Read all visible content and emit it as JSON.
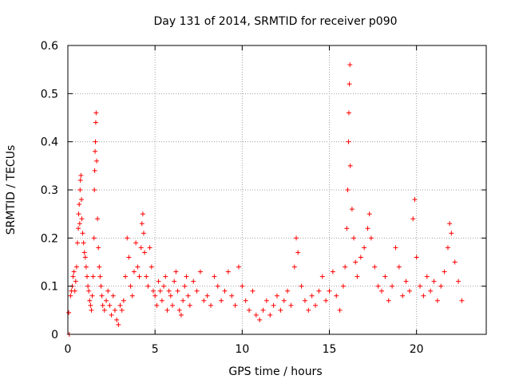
{
  "chart_data": {
    "type": "scatter",
    "title": "Day 131 of 2014, SRMTID for receiver p090",
    "xlabel": "GPS time / hours",
    "ylabel": "SRMTID / TECUs",
    "xlim": [
      0,
      24
    ],
    "ylim": [
      0,
      0.6
    ],
    "x_ticks": [
      0,
      5,
      10,
      15,
      20
    ],
    "x_tick_labels": [
      "0",
      "5",
      "10",
      "15",
      "20"
    ],
    "y_ticks": [
      0,
      0.1,
      0.2,
      0.3,
      0.4,
      0.5,
      0.6
    ],
    "y_tick_labels": [
      "0",
      "0.1",
      "0.2",
      "0.3",
      "0.4",
      "0.5",
      "0.6"
    ],
    "grid": true,
    "marker": "+",
    "marker_color": "#ff0000",
    "series": [
      {
        "name": "SRMTID",
        "points": [
          [
            0.05,
            0.045
          ],
          [
            0.08,
            0.0
          ],
          [
            0.15,
            0.08
          ],
          [
            0.2,
            0.09
          ],
          [
            0.25,
            0.1
          ],
          [
            0.3,
            0.12
          ],
          [
            0.35,
            0.13
          ],
          [
            0.4,
            0.09
          ],
          [
            0.45,
            0.11
          ],
          [
            0.5,
            0.14
          ],
          [
            0.55,
            0.19
          ],
          [
            0.6,
            0.22
          ],
          [
            0.62,
            0.25
          ],
          [
            0.65,
            0.27
          ],
          [
            0.68,
            0.23
          ],
          [
            0.7,
            0.3
          ],
          [
            0.72,
            0.32
          ],
          [
            0.75,
            0.33
          ],
          [
            0.78,
            0.28
          ],
          [
            0.8,
            0.24
          ],
          [
            0.85,
            0.21
          ],
          [
            0.9,
            0.19
          ],
          [
            0.95,
            0.17
          ],
          [
            1.0,
            0.16
          ],
          [
            1.05,
            0.14
          ],
          [
            1.1,
            0.12
          ],
          [
            1.15,
            0.1
          ],
          [
            1.2,
            0.09
          ],
          [
            1.25,
            0.07
          ],
          [
            1.3,
            0.06
          ],
          [
            1.35,
            0.05
          ],
          [
            1.4,
            0.08
          ],
          [
            1.45,
            0.12
          ],
          [
            1.5,
            0.2
          ],
          [
            1.52,
            0.3
          ],
          [
            1.54,
            0.34
          ],
          [
            1.56,
            0.38
          ],
          [
            1.58,
            0.4
          ],
          [
            1.6,
            0.44
          ],
          [
            1.62,
            0.46
          ],
          [
            1.65,
            0.36
          ],
          [
            1.7,
            0.24
          ],
          [
            1.75,
            0.18
          ],
          [
            1.8,
            0.14
          ],
          [
            1.85,
            0.12
          ],
          [
            1.9,
            0.1
          ],
          [
            1.95,
            0.08
          ],
          [
            2.0,
            0.06
          ],
          [
            2.1,
            0.05
          ],
          [
            2.2,
            0.07
          ],
          [
            2.3,
            0.09
          ],
          [
            2.4,
            0.06
          ],
          [
            2.5,
            0.04
          ],
          [
            2.6,
            0.08
          ],
          [
            2.7,
            0.05
          ],
          [
            2.8,
            0.03
          ],
          [
            2.9,
            0.02
          ],
          [
            3.0,
            0.06
          ],
          [
            3.1,
            0.05
          ],
          [
            3.2,
            0.07
          ],
          [
            3.3,
            0.12
          ],
          [
            3.4,
            0.2
          ],
          [
            3.5,
            0.16
          ],
          [
            3.6,
            0.1
          ],
          [
            3.7,
            0.08
          ],
          [
            3.8,
            0.13
          ],
          [
            3.9,
            0.19
          ],
          [
            4.0,
            0.14
          ],
          [
            4.1,
            0.12
          ],
          [
            4.2,
            0.18
          ],
          [
            4.25,
            0.23
          ],
          [
            4.3,
            0.25
          ],
          [
            4.35,
            0.21
          ],
          [
            4.4,
            0.17
          ],
          [
            4.5,
            0.12
          ],
          [
            4.6,
            0.1
          ],
          [
            4.7,
            0.18
          ],
          [
            4.8,
            0.14
          ],
          [
            4.9,
            0.09
          ],
          [
            5.0,
            0.08
          ],
          [
            5.1,
            0.06
          ],
          [
            5.2,
            0.11
          ],
          [
            5.3,
            0.09
          ],
          [
            5.4,
            0.07
          ],
          [
            5.5,
            0.1
          ],
          [
            5.6,
            0.12
          ],
          [
            5.7,
            0.05
          ],
          [
            5.8,
            0.09
          ],
          [
            5.9,
            0.08
          ],
          [
            6.0,
            0.06
          ],
          [
            6.1,
            0.11
          ],
          [
            6.2,
            0.13
          ],
          [
            6.3,
            0.09
          ],
          [
            6.4,
            0.05
          ],
          [
            6.5,
            0.04
          ],
          [
            6.6,
            0.07
          ],
          [
            6.7,
            0.1
          ],
          [
            6.8,
            0.12
          ],
          [
            6.9,
            0.08
          ],
          [
            7.0,
            0.06
          ],
          [
            7.2,
            0.11
          ],
          [
            7.4,
            0.09
          ],
          [
            7.6,
            0.13
          ],
          [
            7.8,
            0.07
          ],
          [
            8.0,
            0.08
          ],
          [
            8.2,
            0.06
          ],
          [
            8.4,
            0.12
          ],
          [
            8.6,
            0.1
          ],
          [
            8.8,
            0.07
          ],
          [
            9.0,
            0.09
          ],
          [
            9.2,
            0.13
          ],
          [
            9.4,
            0.08
          ],
          [
            9.6,
            0.06
          ],
          [
            9.8,
            0.14
          ],
          [
            10.0,
            0.1
          ],
          [
            10.2,
            0.07
          ],
          [
            10.4,
            0.05
          ],
          [
            10.6,
            0.09
          ],
          [
            10.8,
            0.04
          ],
          [
            11.0,
            0.03
          ],
          [
            11.2,
            0.05
          ],
          [
            11.4,
            0.07
          ],
          [
            11.6,
            0.04
          ],
          [
            11.8,
            0.06
          ],
          [
            12.0,
            0.08
          ],
          [
            12.2,
            0.05
          ],
          [
            12.4,
            0.07
          ],
          [
            12.6,
            0.09
          ],
          [
            12.8,
            0.06
          ],
          [
            13.0,
            0.14
          ],
          [
            13.1,
            0.2
          ],
          [
            13.2,
            0.17
          ],
          [
            13.4,
            0.1
          ],
          [
            13.6,
            0.07
          ],
          [
            13.8,
            0.05
          ],
          [
            14.0,
            0.08
          ],
          [
            14.2,
            0.06
          ],
          [
            14.4,
            0.09
          ],
          [
            14.6,
            0.12
          ],
          [
            14.8,
            0.07
          ],
          [
            15.0,
            0.09
          ],
          [
            15.2,
            0.13
          ],
          [
            15.4,
            0.08
          ],
          [
            15.6,
            0.05
          ],
          [
            15.8,
            0.1
          ],
          [
            15.9,
            0.14
          ],
          [
            16.0,
            0.22
          ],
          [
            16.05,
            0.3
          ],
          [
            16.1,
            0.4
          ],
          [
            16.12,
            0.46
          ],
          [
            16.15,
            0.52
          ],
          [
            16.18,
            0.56
          ],
          [
            16.2,
            0.35
          ],
          [
            16.3,
            0.26
          ],
          [
            16.4,
            0.2
          ],
          [
            16.5,
            0.15
          ],
          [
            16.6,
            0.12
          ],
          [
            16.8,
            0.16
          ],
          [
            17.0,
            0.18
          ],
          [
            17.2,
            0.22
          ],
          [
            17.3,
            0.25
          ],
          [
            17.4,
            0.2
          ],
          [
            17.6,
            0.14
          ],
          [
            17.8,
            0.1
          ],
          [
            18.0,
            0.09
          ],
          [
            18.2,
            0.12
          ],
          [
            18.4,
            0.07
          ],
          [
            18.6,
            0.1
          ],
          [
            18.8,
            0.18
          ],
          [
            19.0,
            0.14
          ],
          [
            19.2,
            0.08
          ],
          [
            19.4,
            0.11
          ],
          [
            19.6,
            0.09
          ],
          [
            19.8,
            0.24
          ],
          [
            19.9,
            0.28
          ],
          [
            20.0,
            0.16
          ],
          [
            20.2,
            0.1
          ],
          [
            20.4,
            0.08
          ],
          [
            20.6,
            0.12
          ],
          [
            20.8,
            0.09
          ],
          [
            21.0,
            0.11
          ],
          [
            21.2,
            0.07
          ],
          [
            21.4,
            0.1
          ],
          [
            21.6,
            0.13
          ],
          [
            21.8,
            0.18
          ],
          [
            21.9,
            0.23
          ],
          [
            22.0,
            0.21
          ],
          [
            22.2,
            0.15
          ],
          [
            22.4,
            0.11
          ],
          [
            22.6,
            0.07
          ]
        ]
      }
    ]
  }
}
